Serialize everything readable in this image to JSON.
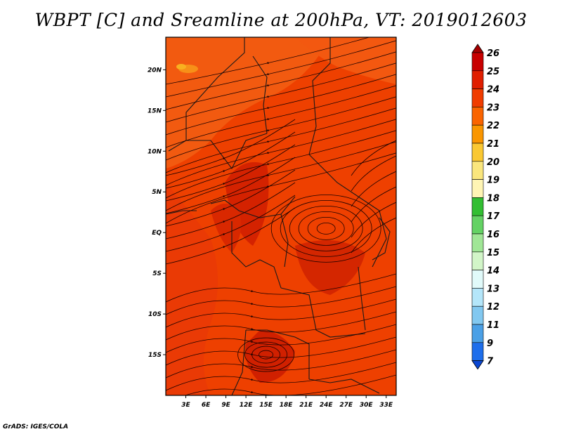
{
  "chart_data": {
    "type": "heatmap",
    "title": "WBPT [C] and Sreamline at 200hPa, VT: 2019012603",
    "variable": "WBPT",
    "unit": "C",
    "level": "200hPa",
    "valid_time": "2019012603",
    "overlay": "streamlines",
    "x_ticks": [
      "3E",
      "6E",
      "9E",
      "12E",
      "15E",
      "18E",
      "21E",
      "24E",
      "27E",
      "30E",
      "33E"
    ],
    "y_ticks": [
      "20N",
      "15N",
      "10N",
      "5N",
      "EQ",
      "5S",
      "10S",
      "15S"
    ],
    "xlim": [
      0,
      34.5
    ],
    "ylim": [
      -20,
      24
    ],
    "field_range": [
      23,
      25
    ],
    "dominant_band": "24",
    "colorbar": {
      "levels": [
        "26",
        "25",
        "24",
        "23",
        "22",
        "21",
        "20",
        "19",
        "18",
        "17",
        "16",
        "15",
        "14",
        "13",
        "12",
        "11",
        "9",
        "7"
      ],
      "colors": [
        "#a50000",
        "#c80000",
        "#e01e00",
        "#f03c00",
        "#fa6400",
        "#fa9600",
        "#fac832",
        "#fae67d",
        "#fff5b4",
        "#32be32",
        "#64d264",
        "#a0e696",
        "#d2f5c8",
        "#e1fafa",
        "#b4e6fa",
        "#82c8f0",
        "#4ba0e6",
        "#1e6eeb",
        "#0a46d2"
      ],
      "extend": "both"
    },
    "streamlines": {
      "anticyclone_centers": [
        {
          "lon": 24,
          "lat": 0.5
        },
        {
          "lon": 15,
          "lat": -15
        }
      ],
      "flow_north": "easterly/north-easterly",
      "flow_west": "westerly"
    }
  },
  "footer": {
    "credit": "GrADS: IGES/COLA"
  }
}
